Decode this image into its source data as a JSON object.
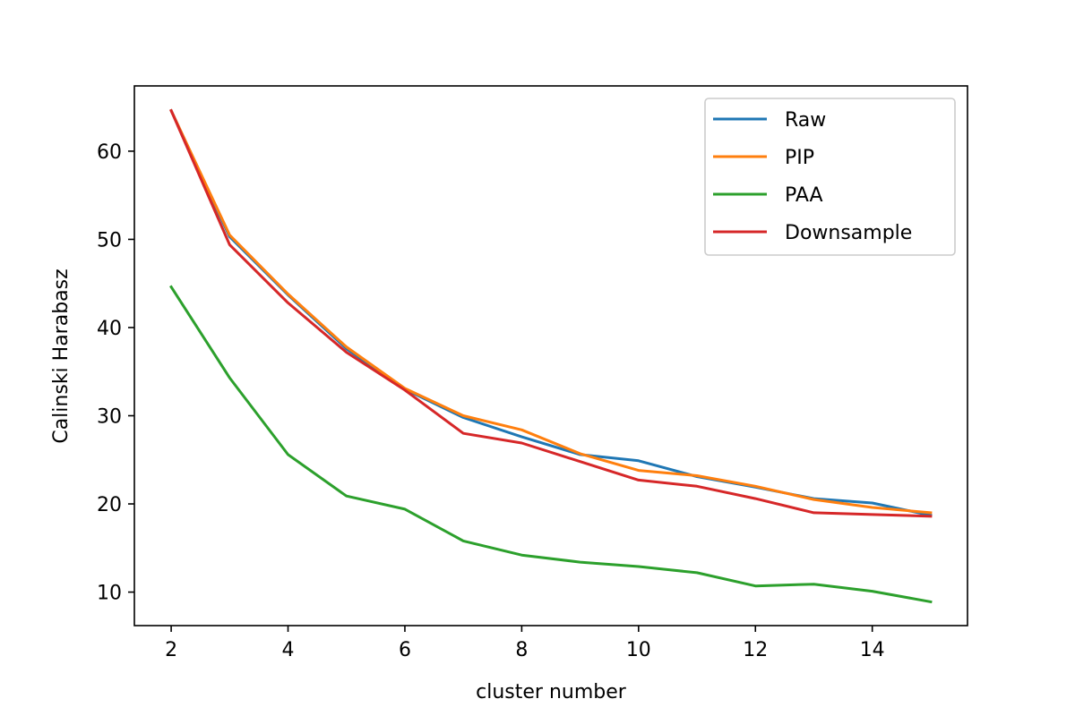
{
  "chart_data": {
    "type": "line",
    "title": "",
    "xlabel": "cluster number",
    "ylabel": "Calinski Harabasz",
    "xlim": [
      1.37,
      15.63
    ],
    "ylim": [
      6.2,
      67.4
    ],
    "xticks": [
      2,
      4,
      6,
      8,
      10,
      12,
      14
    ],
    "yticks": [
      10,
      20,
      30,
      40,
      50,
      60
    ],
    "grid": false,
    "legend": "top-right",
    "x": [
      2,
      3,
      4,
      5,
      6,
      7,
      8,
      9,
      10,
      11,
      12,
      13,
      14,
      15
    ],
    "series": [
      {
        "name": "Raw",
        "color": "#1f77b4",
        "values": [
          64.6,
          50.3,
          43.7,
          37.6,
          33.0,
          29.8,
          27.6,
          25.6,
          24.9,
          23.1,
          21.9,
          20.6,
          20.1,
          18.7
        ]
      },
      {
        "name": "PIP",
        "color": "#ff7f0e",
        "values": [
          64.6,
          50.5,
          43.8,
          37.8,
          33.1,
          30.0,
          28.4,
          25.7,
          23.8,
          23.2,
          22.0,
          20.5,
          19.6,
          19.0
        ]
      },
      {
        "name": "PAA",
        "color": "#2ca02c",
        "values": [
          44.6,
          34.3,
          25.6,
          20.9,
          19.4,
          15.8,
          14.2,
          13.4,
          12.9,
          12.2,
          10.7,
          10.9,
          10.1,
          8.9
        ]
      },
      {
        "name": "Downsample",
        "color": "#d62728",
        "values": [
          64.6,
          49.4,
          42.8,
          37.2,
          32.9,
          28.0,
          26.9,
          24.8,
          22.7,
          22.0,
          20.6,
          19.0,
          18.8,
          18.6
        ]
      }
    ]
  }
}
